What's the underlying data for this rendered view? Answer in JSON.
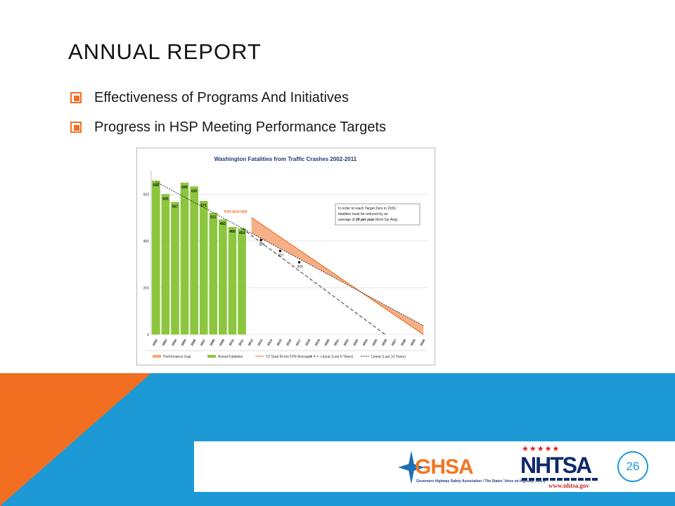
{
  "slide": {
    "title": "ANNUAL REPORT",
    "bullets": [
      "Effectiveness of Programs And Initiatives",
      "Progress in HSP Meeting Performance Targets"
    ],
    "page_number": "26",
    "colors": {
      "accent_orange": "#f26f21",
      "accent_blue": "#1d9ad6"
    }
  },
  "logos": {
    "ghsa": {
      "name": "GHSA",
      "tagline": "Governors Highway Safety Association / The States' Voice on Highway Safety"
    },
    "nhtsa": {
      "name": "NHTSA",
      "url": "www.nhtsa.gov"
    }
  },
  "chart_data": {
    "type": "bar",
    "title": "Washington Fatalities from Traffic Crashes 2002-2011",
    "categories": [
      "2002",
      "2003",
      "2004",
      "2005",
      "2006",
      "2007",
      "2008",
      "2009",
      "2010",
      "2011",
      "2012",
      "2013",
      "2014",
      "2015",
      "2016",
      "2017",
      "2018",
      "2019",
      "2020",
      "2021",
      "2022",
      "2023",
      "2024",
      "2025",
      "2026",
      "2027",
      "2028",
      "2029",
      "2030"
    ],
    "series": [
      {
        "name": "Actual Fatalities",
        "type": "bar",
        "color": "#8cc63f",
        "x": [
          "2002",
          "2003",
          "2004",
          "2005",
          "2006",
          "2007",
          "2008",
          "2009",
          "2010",
          "2011"
        ],
        "values": [
          658,
          600,
          567,
          649,
          633,
          571,
          521,
          492,
          460,
          454
        ]
      },
      {
        "name": "TZ Goal (From 5YR Average)",
        "type": "line",
        "color": "#f26f21",
        "x": [
          "2012",
          "2030"
        ],
        "values": [
          500,
          0
        ]
      },
      {
        "name": "Linear (Last 5 Years)",
        "type": "line",
        "color": "#222222",
        "x": [
          "2011",
          "2026"
        ],
        "values": [
          454,
          0
        ]
      },
      {
        "name": "Linear (Last 10 Years)",
        "type": "line",
        "color": "#222222",
        "x": [
          "2002",
          "2030"
        ],
        "values": [
          653,
          38
        ]
      },
      {
        "name": "Performance Gap",
        "type": "area",
        "color": "#f5a77a"
      }
    ],
    "points": [
      {
        "x": "2013",
        "value": 404,
        "label": "404"
      },
      {
        "x": "2015",
        "value": 357,
        "label": "357"
      },
      {
        "x": "2017",
        "value": 309,
        "label": "309"
      }
    ],
    "annotations": [
      "5YR AVG=500",
      "In order to reach Target Zero in 2030, fatalities must be reduced by an average of 24 per year (from 5yr Avg)."
    ],
    "ylim": [
      0,
      700
    ],
    "yticks": [
      0,
      200,
      400,
      600
    ],
    "grid": true,
    "legend_position": "bottom",
    "legend": [
      "Performance Gap",
      "Actual Fatalities",
      "TZ Goal (From 5YR Average)",
      "Linear (Last 5 Years)",
      "Linear (Last 10 Years)"
    ]
  }
}
